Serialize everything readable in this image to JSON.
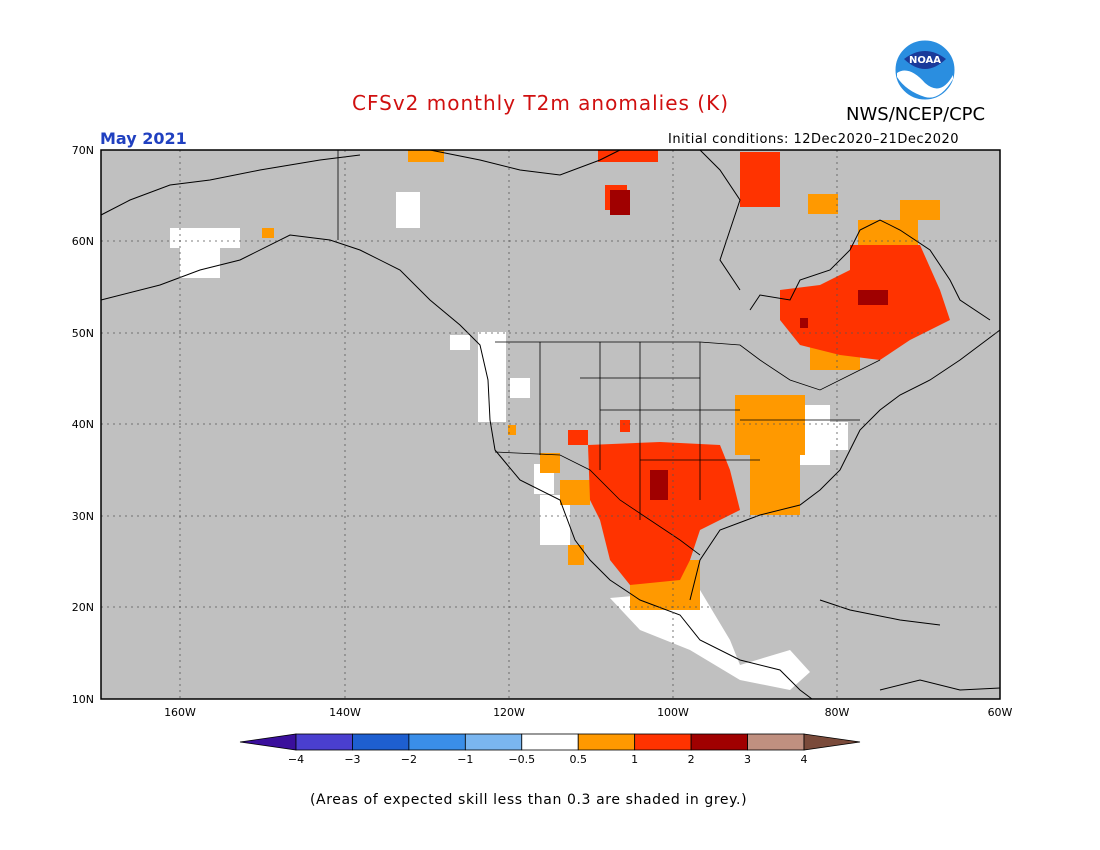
{
  "header": {
    "title": "CFSv2 monthly T2m anomalies (K)",
    "agency": "NWS/NCEP/CPC",
    "month": "May 2021",
    "initial_conditions": "Initial conditions: 12Dec2020–21Dec2020",
    "logo_text": "NOAA"
  },
  "colors": {
    "title": "#d01010",
    "month": "#2040c0",
    "ocean_grey": "#c0c0c0",
    "neutral": "#ffffff",
    "above_0_5": "#ff9900",
    "above_1": "#ff3300",
    "above_2": "#a00000",
    "above_3": "#c09080",
    "above_4": "#7a4a3a"
  },
  "axes": {
    "y_ticks": [
      "70N",
      "60N",
      "50N",
      "40N",
      "30N",
      "20N",
      "10N"
    ],
    "x_ticks": [
      "160W",
      "140W",
      "120W",
      "100W",
      "80W",
      "60W"
    ]
  },
  "colorbar": {
    "labels": [
      "−4",
      "−3",
      "−2",
      "−1",
      "−0.5",
      "0.5",
      "1",
      "2",
      "3",
      "4"
    ],
    "colors": [
      "#3a0f9c",
      "#4a3fcf",
      "#1e5fd0",
      "#3a8ee8",
      "#7ab6f0",
      "#ffffff",
      "#ff9900",
      "#ff3300",
      "#a00000",
      "#c09080",
      "#7a4a3a"
    ]
  },
  "footnote": "(Areas of expected skill less than 0.3 are shaded in grey.)"
}
